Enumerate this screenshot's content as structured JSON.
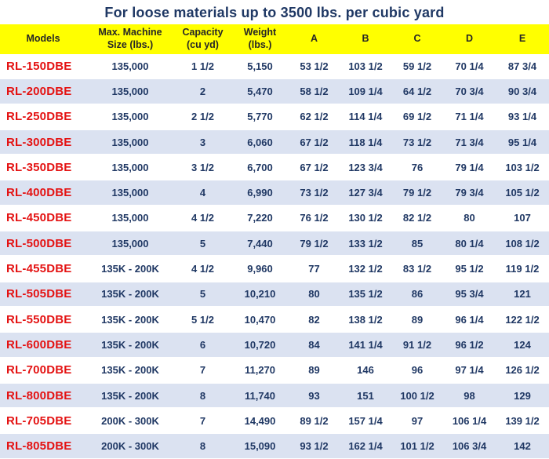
{
  "title": "For loose materials up to 3500 lbs. per cubic yard",
  "colors": {
    "title_text": "#1f3864",
    "header_bg": "#ffff00",
    "header_text": "#262626",
    "model_text": "#e41212",
    "data_text": "#203864",
    "alt_row_bg": "#dbe2f1"
  },
  "table": {
    "columns": [
      "Models",
      "Max. Machine\nSize (lbs.)",
      "Capacity\n(cu yd)",
      "Weight (lbs.)",
      "A",
      "B",
      "C",
      "D",
      "E"
    ],
    "rows": [
      {
        "model": "RL-150DBE",
        "max_size": "135,000",
        "capacity": "1 1/2",
        "weight": "5,150",
        "A": "53 1/2",
        "B": "103 1/2",
        "C": "59 1/2",
        "D": "70 1/4",
        "E": "87 3/4"
      },
      {
        "model": "RL-200DBE",
        "max_size": "135,000",
        "capacity": "2",
        "weight": "5,470",
        "A": "58 1/2",
        "B": "109 1/4",
        "C": "64 1/2",
        "D": "70 3/4",
        "E": "90 3/4"
      },
      {
        "model": "RL-250DBE",
        "max_size": "135,000",
        "capacity": "2 1/2",
        "weight": "5,770",
        "A": "62 1/2",
        "B": "114 1/4",
        "C": "69 1/2",
        "D": "71 1/4",
        "E": "93 1/4"
      },
      {
        "model": "RL-300DBE",
        "max_size": "135,000",
        "capacity": "3",
        "weight": "6,060",
        "A": "67 1/2",
        "B": "118 1/4",
        "C": "73 1/2",
        "D": "71 3/4",
        "E": "95 1/4"
      },
      {
        "model": "RL-350DBE",
        "max_size": "135,000",
        "capacity": "3 1/2",
        "weight": "6,700",
        "A": "67 1/2",
        "B": "123 3/4",
        "C": "76",
        "D": "79 1/4",
        "E": "103 1/2"
      },
      {
        "model": "RL-400DBE",
        "max_size": "135,000",
        "capacity": "4",
        "weight": "6,990",
        "A": "73 1/2",
        "B": "127 3/4",
        "C": "79 1/2",
        "D": "79 3/4",
        "E": "105 1/2"
      },
      {
        "model": "RL-450DBE",
        "max_size": "135,000",
        "capacity": "4 1/2",
        "weight": "7,220",
        "A": "76 1/2",
        "B": "130 1/2",
        "C": "82 1/2",
        "D": "80",
        "E": "107"
      },
      {
        "model": "RL-500DBE",
        "max_size": "135,000",
        "capacity": "5",
        "weight": "7,440",
        "A": "79 1/2",
        "B": "133 1/2",
        "C": "85",
        "D": "80 1/4",
        "E": "108 1/2"
      },
      {
        "model": "RL-455DBE",
        "max_size": "135K - 200K",
        "capacity": "4 1/2",
        "weight": "9,960",
        "A": "77",
        "B": "132 1/2",
        "C": "83 1/2",
        "D": "95 1/2",
        "E": "119 1/2"
      },
      {
        "model": "RL-505DBE",
        "max_size": "135K - 200K",
        "capacity": "5",
        "weight": "10,210",
        "A": "80",
        "B": "135 1/2",
        "C": "86",
        "D": "95 3/4",
        "E": "121"
      },
      {
        "model": "RL-550DBE",
        "max_size": "135K - 200K",
        "capacity": "5 1/2",
        "weight": "10,470",
        "A": "82",
        "B": "138 1/2",
        "C": "89",
        "D": "96 1/4",
        "E": "122 1/2"
      },
      {
        "model": "RL-600DBE",
        "max_size": "135K - 200K",
        "capacity": "6",
        "weight": "10,720",
        "A": "84",
        "B": "141 1/4",
        "C": "91 1/2",
        "D": "96 1/2",
        "E": "124"
      },
      {
        "model": "RL-700DBE",
        "max_size": "135K - 200K",
        "capacity": "7",
        "weight": "11,270",
        "A": "89",
        "B": "146",
        "C": "96",
        "D": "97 1/4",
        "E": "126 1/2"
      },
      {
        "model": "RL-800DBE",
        "max_size": "135K - 200K",
        "capacity": "8",
        "weight": "11,740",
        "A": "93",
        "B": "151",
        "C": "100 1/2",
        "D": "98",
        "E": "129"
      },
      {
        "model": "RL-705DBE",
        "max_size": "200K - 300K",
        "capacity": "7",
        "weight": "14,490",
        "A": "89 1/2",
        "B": "157 1/4",
        "C": "97",
        "D": "106 1/4",
        "E": "139 1/2"
      },
      {
        "model": "RL-805DBE",
        "max_size": "200K - 300K",
        "capacity": "8",
        "weight": "15,090",
        "A": "93 1/2",
        "B": "162 1/4",
        "C": "101 1/2",
        "D": "106 3/4",
        "E": "142"
      }
    ]
  }
}
